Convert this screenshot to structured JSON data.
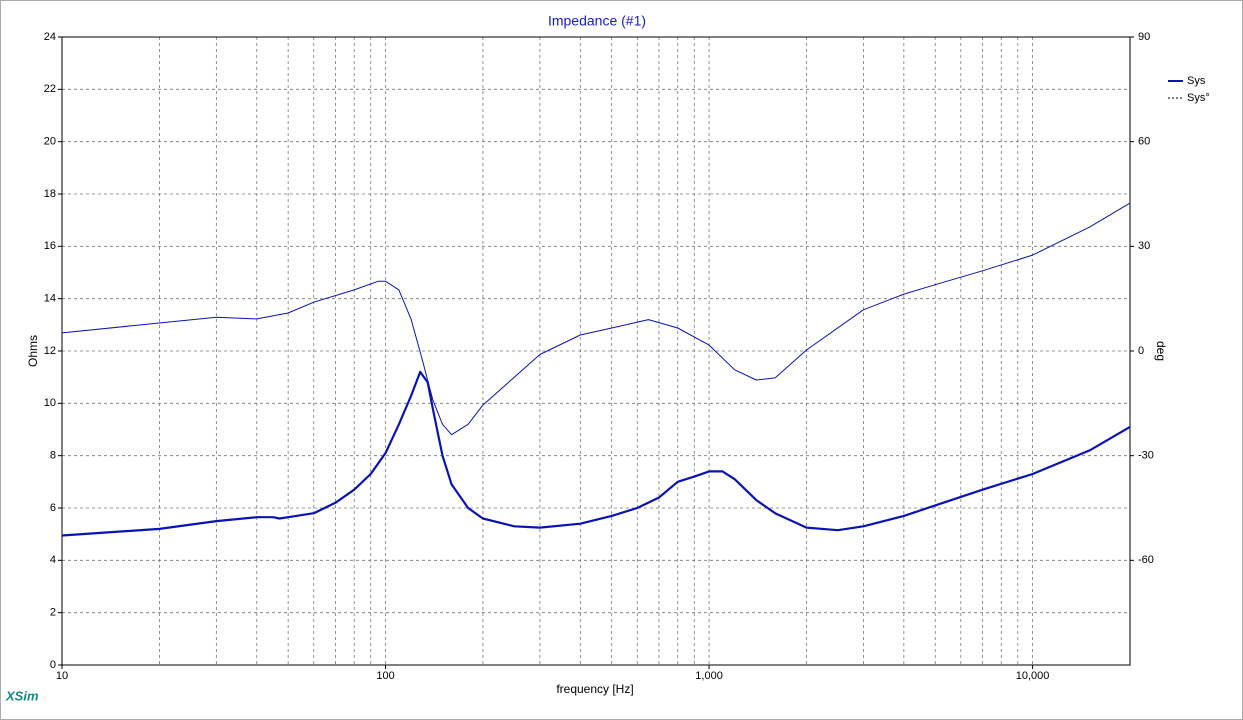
{
  "chart_data": {
    "type": "line",
    "title": "Impedance (#1)",
    "x_label": "frequency [Hz]",
    "y_label": "Ohms",
    "y2_label": "deg",
    "logo": "XSim",
    "x_log": true,
    "grid": true,
    "legend_position": "upper right",
    "xlim": [
      10,
      20000
    ],
    "xticks": [
      10,
      100,
      {
        "value": 1000,
        "label": "1,000"
      },
      {
        "value": 10000,
        "label": "10,000"
      }
    ],
    "x_minor_grid": [
      20,
      30,
      40,
      50,
      60,
      70,
      80,
      90,
      200,
      300,
      400,
      500,
      600,
      700,
      800,
      900,
      2000,
      3000,
      4000,
      5000,
      6000,
      7000,
      8000,
      9000
    ],
    "ylim": [
      0,
      24
    ],
    "yticks": [
      0,
      2,
      4,
      6,
      8,
      10,
      12,
      14,
      16,
      18,
      20,
      22,
      24
    ],
    "y2lim": [
      -90,
      90
    ],
    "y2ticks": [
      -60,
      -30,
      0,
      30,
      60,
      90
    ],
    "series": [
      {
        "name": "Sys",
        "color": "#0a14b4",
        "width": 2.2,
        "dash": false,
        "x": [
          10,
          20,
          30,
          40,
          45,
          47,
          50,
          60,
          70,
          80,
          90,
          100,
          110,
          120,
          128,
          135,
          140,
          150,
          160,
          180,
          200,
          250,
          300,
          400,
          500,
          600,
          700,
          800,
          900,
          1000,
          1100,
          1200,
          1400,
          1600,
          2000,
          2500,
          3000,
          4000,
          5000,
          7000,
          10000,
          15000,
          20000
        ],
        "values": [
          4.95,
          5.2,
          5.5,
          5.65,
          5.65,
          5.6,
          5.65,
          5.8,
          6.2,
          6.7,
          7.3,
          8.1,
          9.2,
          10.3,
          11.2,
          10.8,
          9.8,
          8.0,
          6.9,
          6.0,
          5.6,
          5.3,
          5.25,
          5.4,
          5.7,
          6.0,
          6.4,
          7.0,
          7.2,
          7.4,
          7.4,
          7.1,
          6.3,
          5.8,
          5.25,
          5.15,
          5.3,
          5.7,
          6.1,
          6.7,
          7.3,
          8.2,
          9.1
        ]
      },
      {
        "name": "Sys°",
        "color": "#0a14b4",
        "width": 1,
        "dash": true,
        "axis": "y2",
        "x": [
          10,
          30,
          40,
          50,
          60,
          80,
          95,
          100,
          110,
          120,
          130,
          140,
          150,
          160,
          180,
          200,
          300,
          400,
          500,
          650,
          800,
          1000,
          1200,
          1400,
          1600,
          2000,
          3000,
          4000,
          5000,
          7000,
          10000,
          15000,
          20000
        ],
        "values": [
          5.2,
          9.7,
          9.2,
          10.9,
          14,
          17.5,
          20,
          20,
          17.5,
          9,
          -2.6,
          -14,
          -21,
          -24,
          -21,
          -15.5,
          -1,
          4.6,
          6.6,
          9,
          6.6,
          1.7,
          -5.4,
          -8.3,
          -7.7,
          0.3,
          11.8,
          16.3,
          19,
          23,
          27.5,
          35.5,
          42.4
        ]
      }
    ]
  }
}
